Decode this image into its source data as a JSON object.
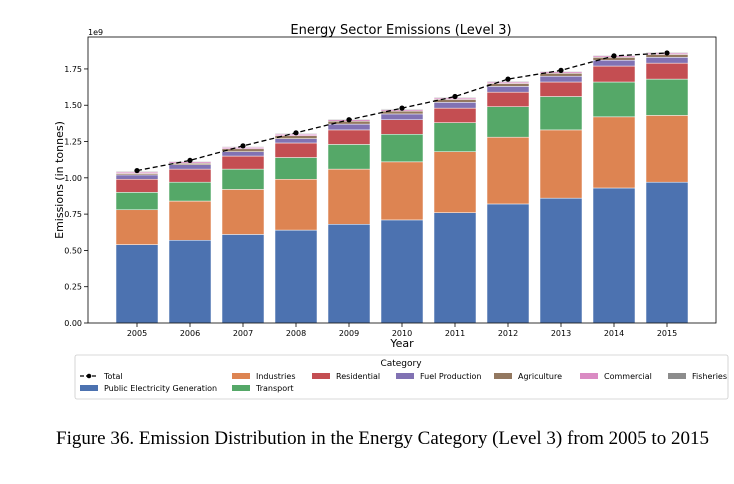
{
  "chart_data": {
    "type": "bar",
    "stacked": true,
    "title": "Energy Sector Emissions (Level 3)",
    "xlabel": "Year",
    "ylabel": "Emissions (in tonnes)",
    "y_offset_label": "1e9",
    "ylim": [
      0,
      1.97
    ],
    "y_ticks": [
      0.0,
      0.25,
      0.5,
      0.75,
      1.0,
      1.25,
      1.5,
      1.75
    ],
    "y_tick_labels": [
      "0.00",
      "0.25",
      "0.50",
      "0.75",
      "1.00",
      "1.25",
      "1.50",
      "1.75"
    ],
    "categories": [
      "2005",
      "2006",
      "2007",
      "2008",
      "2009",
      "2010",
      "2011",
      "2012",
      "2013",
      "2014",
      "2015"
    ],
    "series": [
      {
        "name": "Public Electricity Generation",
        "color": "#4c72b0",
        "values": [
          0.54,
          0.57,
          0.61,
          0.64,
          0.68,
          0.71,
          0.76,
          0.82,
          0.86,
          0.93,
          0.97
        ]
      },
      {
        "name": "Industries",
        "color": "#dd8452",
        "values": [
          0.24,
          0.27,
          0.31,
          0.35,
          0.38,
          0.4,
          0.42,
          0.46,
          0.47,
          0.49,
          0.46
        ]
      },
      {
        "name": "Transport",
        "color": "#55a868",
        "values": [
          0.12,
          0.13,
          0.14,
          0.15,
          0.17,
          0.19,
          0.2,
          0.21,
          0.23,
          0.24,
          0.25
        ]
      },
      {
        "name": "Residential",
        "color": "#c44e52",
        "values": [
          0.09,
          0.09,
          0.09,
          0.1,
          0.1,
          0.1,
          0.1,
          0.1,
          0.1,
          0.11,
          0.11
        ]
      },
      {
        "name": "Fuel Production",
        "color": "#8172b3",
        "values": [
          0.03,
          0.03,
          0.03,
          0.03,
          0.04,
          0.04,
          0.04,
          0.04,
          0.04,
          0.04,
          0.04
        ]
      },
      {
        "name": "Agriculture",
        "color": "#937860",
        "values": [
          0.01,
          0.01,
          0.02,
          0.02,
          0.02,
          0.02,
          0.02,
          0.02,
          0.02,
          0.02,
          0.02
        ]
      },
      {
        "name": "Commercial",
        "color": "#da8bc3",
        "values": [
          0.01,
          0.01,
          0.01,
          0.01,
          0.01,
          0.01,
          0.01,
          0.01,
          0.01,
          0.01,
          0.01
        ]
      },
      {
        "name": "Fisheries",
        "color": "#8c8c8c",
        "values": [
          0.005,
          0.005,
          0.005,
          0.005,
          0.005,
          0.005,
          0.005,
          0.005,
          0.005,
          0.005,
          0.005
        ]
      }
    ],
    "total": {
      "name": "Total",
      "color": "#000000",
      "values": [
        1.05,
        1.12,
        1.22,
        1.31,
        1.4,
        1.48,
        1.56,
        1.68,
        1.74,
        1.84,
        1.86
      ]
    },
    "legend": {
      "title": "Category",
      "placement": "bottom",
      "order": [
        "Total",
        "Public Electricity Generation",
        "Industries",
        "Transport",
        "Residential",
        "Fuel Production",
        "Agriculture",
        "Commercial",
        "Fisheries"
      ]
    },
    "grid": false
  },
  "caption": "Figure 36.  Emission Distribution in the Energy Category (Level 3) from 2005 to 2015"
}
